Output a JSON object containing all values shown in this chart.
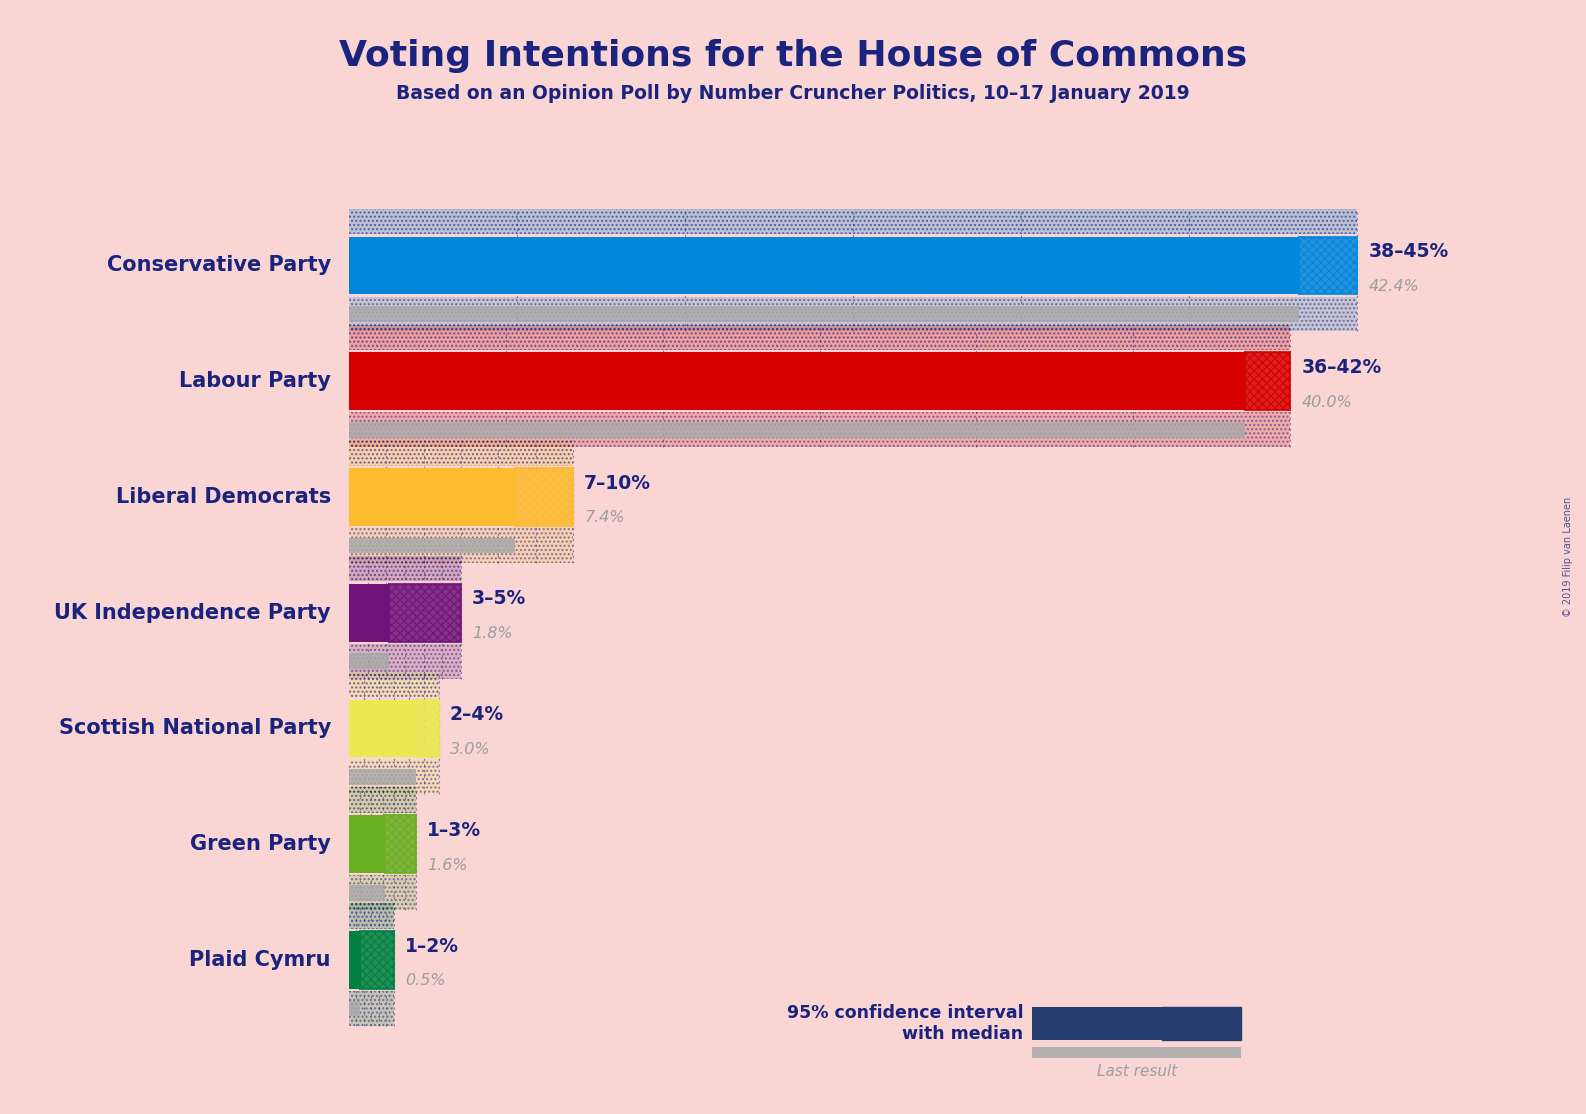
{
  "title": "Voting Intentions for the House of Commons",
  "subtitle": "Based on an Opinion Poll by Number Cruncher Politics, 10–17 January 2019",
  "watermark": "© 2019 Filip van Laenen",
  "background_color": "#f9d5d3",
  "parties": [
    {
      "name": "Conservative Party",
      "median": 42.4,
      "ci_low": 38,
      "ci_high": 45,
      "last_result": 42.4,
      "color": "#0087dc",
      "label": "38–45%",
      "sublabel": "42.4%"
    },
    {
      "name": "Labour Party",
      "median": 40.0,
      "ci_low": 36,
      "ci_high": 42,
      "last_result": 40.0,
      "color": "#d50000",
      "label": "36–42%",
      "sublabel": "40.0%"
    },
    {
      "name": "Liberal Democrats",
      "median": 7.4,
      "ci_low": 7,
      "ci_high": 10,
      "last_result": 7.4,
      "color": "#fdbb30",
      "label": "7–10%",
      "sublabel": "7.4%"
    },
    {
      "name": "UK Independence Party",
      "median": 1.8,
      "ci_low": 3,
      "ci_high": 5,
      "last_result": 1.8,
      "color": "#70147a",
      "label": "3–5%",
      "sublabel": "1.8%"
    },
    {
      "name": "Scottish National Party",
      "median": 3.0,
      "ci_low": 2,
      "ci_high": 4,
      "last_result": 3.0,
      "color": "#ece850",
      "label": "2–4%",
      "sublabel": "3.0%"
    },
    {
      "name": "Green Party",
      "median": 1.6,
      "ci_low": 1,
      "ci_high": 3,
      "last_result": 1.6,
      "color": "#6ab023",
      "label": "1–3%",
      "sublabel": "1.6%"
    },
    {
      "name": "Plaid Cymru",
      "median": 0.5,
      "ci_low": 1,
      "ci_high": 2,
      "last_result": 0.5,
      "color": "#008142",
      "label": "1–2%",
      "sublabel": "0.5%"
    }
  ],
  "xlim_max": 46,
  "label_color": "#1a237e",
  "sublabel_color": "#9e9e9e",
  "dot_color": "#1a237e",
  "legend_navy": "#253c6e",
  "legend_text": "95% confidence interval\nwith median",
  "last_result_text": "Last result",
  "last_result_color": "#aaaaaa"
}
